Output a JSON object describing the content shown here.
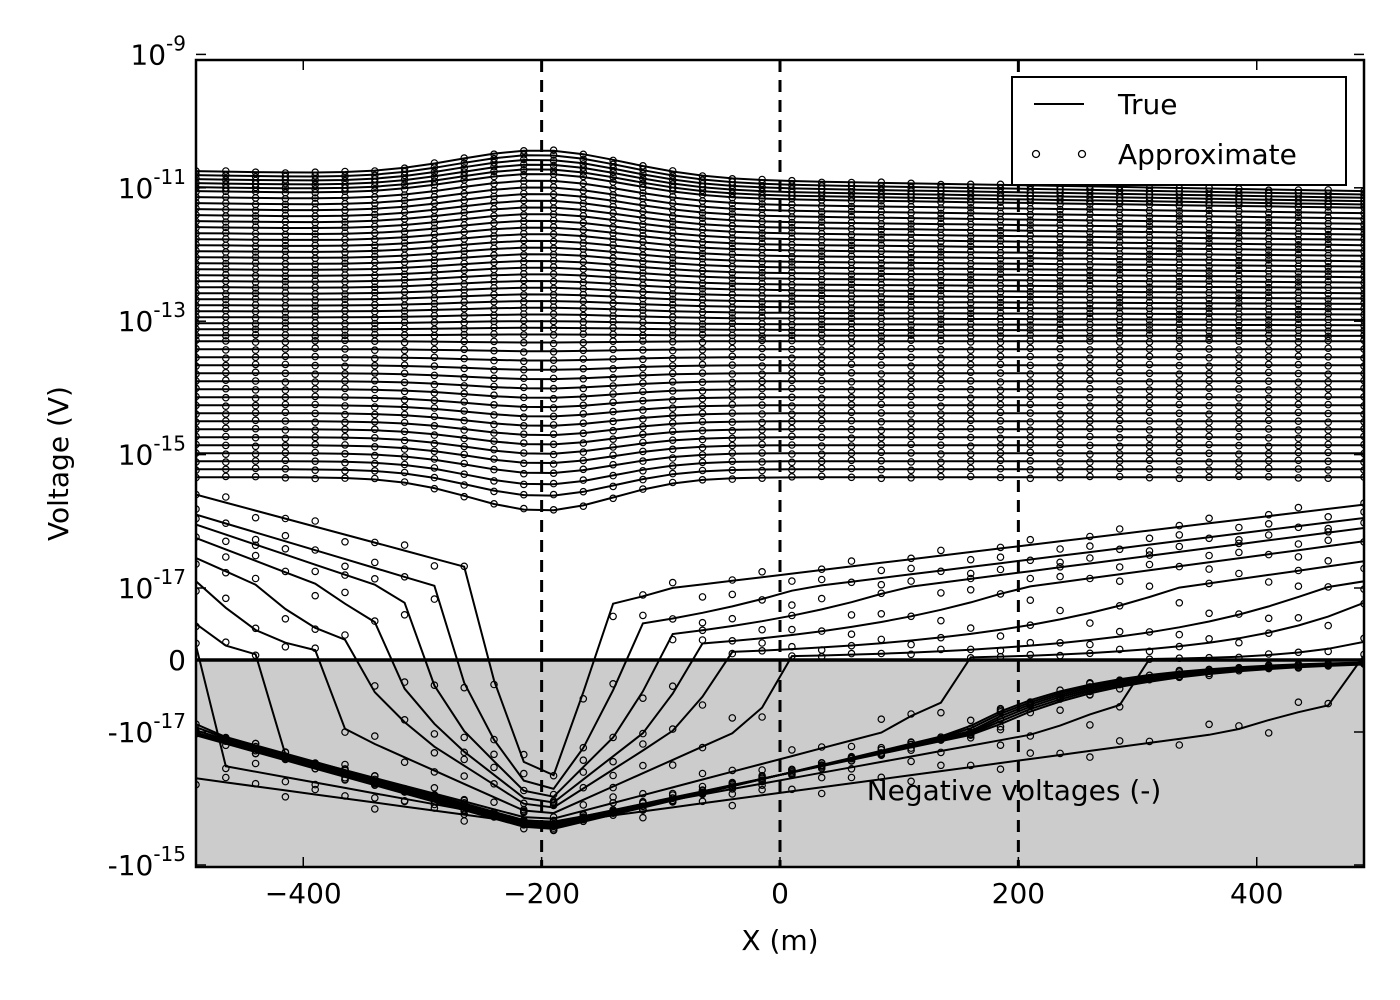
{
  "chart_data": {
    "type": "line",
    "xlabel": "X (m)",
    "ylabel": "Voltage (V)",
    "xlim": [
      -490,
      490
    ],
    "y_scale": "symlog",
    "linthresh": 1e-17,
    "ylim": [
      -1e-15,
      1e-09
    ],
    "x_ticks": [
      -400,
      -200,
      0,
      200,
      400
    ],
    "x_tick_labels": [
      "−400",
      "−200",
      "0",
      "200",
      "400"
    ],
    "y_ticks": [
      {
        "value": 1e-09,
        "base": "10",
        "exp": "-9"
      },
      {
        "value": 1e-11,
        "base": "10",
        "exp": "-11"
      },
      {
        "value": 1e-13,
        "base": "10",
        "exp": "-13"
      },
      {
        "value": 1e-15,
        "base": "10",
        "exp": "-15"
      },
      {
        "value": 1e-17,
        "base": "10",
        "exp": "-17"
      },
      {
        "value": 0,
        "base": "0",
        "exp": ""
      },
      {
        "value": -1e-17,
        "base": "-10",
        "exp": "-17"
      },
      {
        "value": -1e-15,
        "base": "-10",
        "exp": "-15"
      }
    ],
    "vertical_dashed_lines": [
      -200,
      0,
      200
    ],
    "zero_line": true,
    "negative_region": {
      "shaded": true,
      "color": "#cccccc",
      "label": "Negative voltages (-)"
    },
    "legend": {
      "placement": "top-right",
      "entries": [
        {
          "label": "True",
          "style": "line"
        },
        {
          "label": "Approximate",
          "style": "circle-markers"
        }
      ]
    },
    "x": [
      -490,
      -465,
      -440,
      -415,
      -390,
      -365,
      -340,
      -315,
      -290,
      -265,
      -240,
      -215,
      -190,
      -165,
      -140,
      -115,
      -90,
      -65,
      -40,
      -15,
      10,
      35,
      60,
      85,
      110,
      135,
      160,
      185,
      210,
      235,
      260,
      285,
      310,
      335,
      360,
      385,
      410,
      435,
      460,
      490
    ],
    "curve_families": {
      "upper_early_times": {
        "count": 30,
        "log10_level_at_x490": [
          -11.05,
          -11.1,
          -11.15,
          -11.2,
          -11.25,
          -11.3,
          -11.38,
          -11.46,
          -11.54,
          -11.62,
          -11.7,
          -11.78,
          -11.86,
          -11.94,
          -12.02,
          -12.1,
          -12.18,
          -12.26,
          -12.34,
          -12.42,
          -12.5,
          -12.58,
          -12.66,
          -12.74,
          -12.82,
          -12.9,
          -12.98,
          -13.06,
          -13.14,
          -13.22
        ],
        "log10_peak_bump_near_x_minus200": 0.4,
        "log10_drop_by_x490": 0.3
      },
      "middle_times": {
        "count": 18,
        "log10_level": [
          -13.3,
          -13.42,
          -13.54,
          -13.66,
          -13.78,
          -13.9,
          -14.02,
          -14.14,
          -14.26,
          -14.38,
          -14.5,
          -14.62,
          -14.74,
          -14.86,
          -14.98,
          -15.1,
          -15.22,
          -15.34
        ],
        "log10_dip_near_x_minus200": [
          0.02,
          0.03,
          0.05,
          0.07,
          0.09,
          0.11,
          0.13,
          0.15,
          0.17,
          0.19,
          0.21,
          0.23,
          0.25,
          0.27,
          0.3,
          0.35,
          0.4,
          0.5
        ]
      },
      "sign_changing_late_times": [
        {
          "log10_left": -15.6,
          "log10_right": -15.75,
          "neg_trough_log10": -15.95,
          "crossing_left": -240,
          "crossing_right": -160,
          "neg_left_log10": -15.9
        },
        {
          "log10_left": -15.9,
          "log10_right": -15.95,
          "neg_trough_log10": -15.9,
          "crossing_left": -265,
          "crossing_right": -140,
          "neg_left_log10": -16.2
        },
        {
          "log10_left": -16.05,
          "log10_right": -16.1,
          "neg_trough_log10": -15.85,
          "crossing_left": -290,
          "crossing_right": -115,
          "neg_left_log10": -16.3
        },
        {
          "log10_left": -16.25,
          "log10_right": -16.3,
          "neg_trough_log10": -15.8,
          "crossing_left": -315,
          "crossing_right": -90,
          "neg_left_log10": -16.4
        },
        {
          "log10_left": -16.55,
          "log10_right": -16.6,
          "neg_trough_log10": -15.75,
          "crossing_left": -340,
          "crossing_right": -60,
          "neg_left_log10": -16.5
        },
        {
          "log10_left": -16.9,
          "log10_right": -16.9,
          "neg_trough_log10": -15.7,
          "crossing_left": -365,
          "crossing_right": 0,
          "neg_left_log10": -16.6
        },
        {
          "log10_left": -17.3,
          "log10_right": -17.1,
          "neg_trough_log10": -15.65,
          "crossing_left": -415,
          "crossing_right": 140,
          "neg_left_log10": -16.7
        },
        {
          "log10_left": -17.7,
          "log10_right": -17.6,
          "neg_trough_log10": -15.62,
          "crossing_left": -480,
          "crossing_right": 290,
          "neg_left_log10": -16.8
        },
        {
          "log10_left": -18.0,
          "log10_right": -18.2,
          "neg_trough_log10": -15.6,
          "crossing_left": -490,
          "crossing_right": 460,
          "neg_left_log10": -16.85
        }
      ],
      "fully_negative_latest_times": {
        "count": 6,
        "neg_log10_at_x_minus200": [
          -15.6,
          -15.58,
          -15.56,
          -15.54,
          -15.52,
          -15.5
        ],
        "neg_log10_at_x490": [
          -18.2,
          -18.25,
          -18.3,
          -18.35,
          -18.4,
          -18.45
        ]
      }
    }
  }
}
